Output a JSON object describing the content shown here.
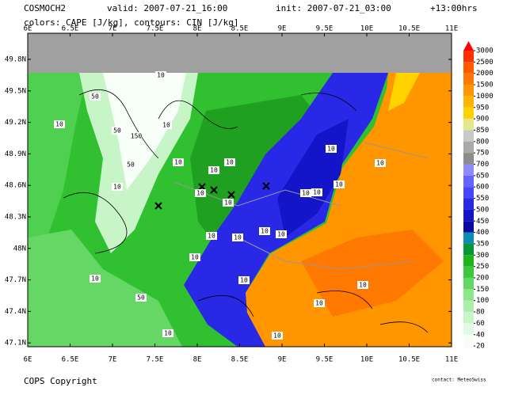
{
  "header": {
    "model": "COSMOCH2",
    "valid": "valid: 2007-07-21_16:00",
    "init": "init: 2007-07-21_03:00",
    "lead": "+13:00hrs",
    "subtitle": "colors: CAPE [J/kg], contours: CIN [J/kg]"
  },
  "map": {
    "x_labels": [
      "6E",
      "6.5E",
      "7E",
      "7.5E",
      "8E",
      "8.5E",
      "9E",
      "9.5E",
      "10E",
      "10.5E",
      "11E"
    ],
    "y_labels": [
      "49.8N",
      "49.5N",
      "49.2N",
      "48.9N",
      "48.6N",
      "48.3N",
      "48N",
      "47.7N",
      "47.4N",
      "47.1N"
    ],
    "contour_labels": [
      "10",
      "50",
      "10",
      "50",
      "10",
      "150",
      "10",
      "50",
      "10",
      "10",
      "10",
      "10",
      "10",
      "10",
      "10",
      "10",
      "10",
      "10",
      "10",
      "10",
      "10",
      "10",
      "50",
      "10",
      "10",
      "10",
      "10",
      "10",
      "10",
      "10"
    ]
  },
  "colorbar": {
    "levels": [
      3000,
      2500,
      2000,
      1500,
      1000,
      950,
      900,
      850,
      800,
      750,
      700,
      650,
      600,
      550,
      500,
      450,
      400,
      350,
      300,
      250,
      200,
      150,
      100,
      80,
      60,
      40,
      20
    ],
    "colors": [
      "#ff0000",
      "#ff3000",
      "#ff5a00",
      "#ff7800",
      "#ff9600",
      "#ffb400",
      "#ffd200",
      "#e6e68c",
      "#c8c8c8",
      "#aaaaaa",
      "#8c8c8c",
      "#8c8cff",
      "#6464ff",
      "#4646ff",
      "#2828e6",
      "#1414c8",
      "#0a0aa0",
      "#0a8cb4",
      "#0a9632",
      "#1eb41e",
      "#3cc83c",
      "#64d764",
      "#8ce68c",
      "#aaf0aa",
      "#c8f5c8",
      "#e1fae1",
      "#f5fff5"
    ]
  },
  "footer": {
    "copyright": "COPS Copyright",
    "contact": "contact: MeteoSwiss"
  }
}
